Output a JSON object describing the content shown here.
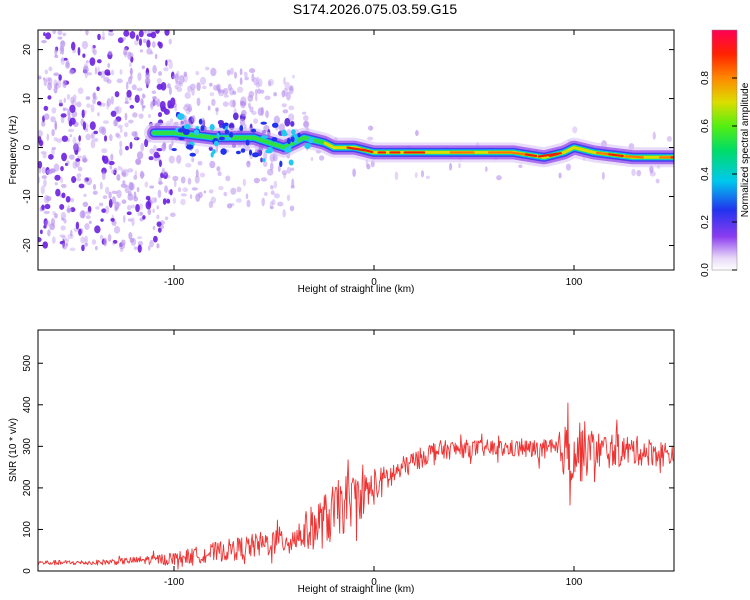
{
  "title": "S174.2026.075.03.59.G15",
  "chart_data": [
    {
      "type": "heatmap",
      "name": "spectrogram",
      "xlabel": "Height of straight line (km)",
      "ylabel": "Frequency (Hz)",
      "xlim": [
        -168,
        150
      ],
      "ylim": [
        -25,
        24
      ],
      "xticks": [
        -100,
        0,
        100
      ],
      "yticks": [
        20,
        10,
        0,
        -10,
        -20
      ],
      "ridge": {
        "description": "dominant frequency ridge (Hz) vs height (km)",
        "x": [
          -100,
          -80,
          -60,
          -45,
          -35,
          -25,
          -20,
          -10,
          0,
          20,
          50,
          70,
          85,
          95,
          100,
          110,
          130,
          150
        ],
        "y": [
          3,
          2,
          2,
          0,
          2,
          1,
          0,
          0,
          -1,
          -1,
          -1,
          -1,
          -2,
          -1,
          0,
          -1,
          -2,
          -2
        ]
      },
      "colorbar": {
        "label": "Normalized spectral amplitude",
        "range": [
          0.0,
          1.0
        ],
        "ticks": [
          0.0,
          0.2,
          0.4,
          0.6,
          0.8
        ],
        "tick_labels": [
          "0.0",
          "0.2",
          "0.4",
          "0.6",
          "0.8"
        ]
      }
    },
    {
      "type": "line",
      "name": "snr",
      "xlabel": "Height of straight line (km)",
      "ylabel": "SNR (10 * v/v)",
      "xlim": [
        -168,
        150
      ],
      "ylim": [
        0,
        580
      ],
      "xticks": [
        -100,
        0,
        100
      ],
      "yticks": [
        0,
        100,
        200,
        300,
        400,
        500
      ],
      "color": "#ee3333",
      "envelope": {
        "description": "approximate mean SNR and fluctuation amplitude vs height",
        "x": [
          -168,
          -140,
          -120,
          -100,
          -80,
          -60,
          -40,
          -25,
          -15,
          0,
          15,
          30,
          50,
          70,
          90,
          100,
          105,
          110,
          130,
          150
        ],
        "mean": [
          20,
          20,
          25,
          30,
          45,
          60,
          80,
          120,
          160,
          200,
          250,
          290,
          295,
          295,
          290,
          290,
          290,
          290,
          290,
          280
        ],
        "amplitude": [
          10,
          10,
          15,
          25,
          40,
          50,
          60,
          110,
          120,
          70,
          45,
          40,
          35,
          35,
          45,
          160,
          120,
          80,
          60,
          50
        ]
      }
    }
  ]
}
